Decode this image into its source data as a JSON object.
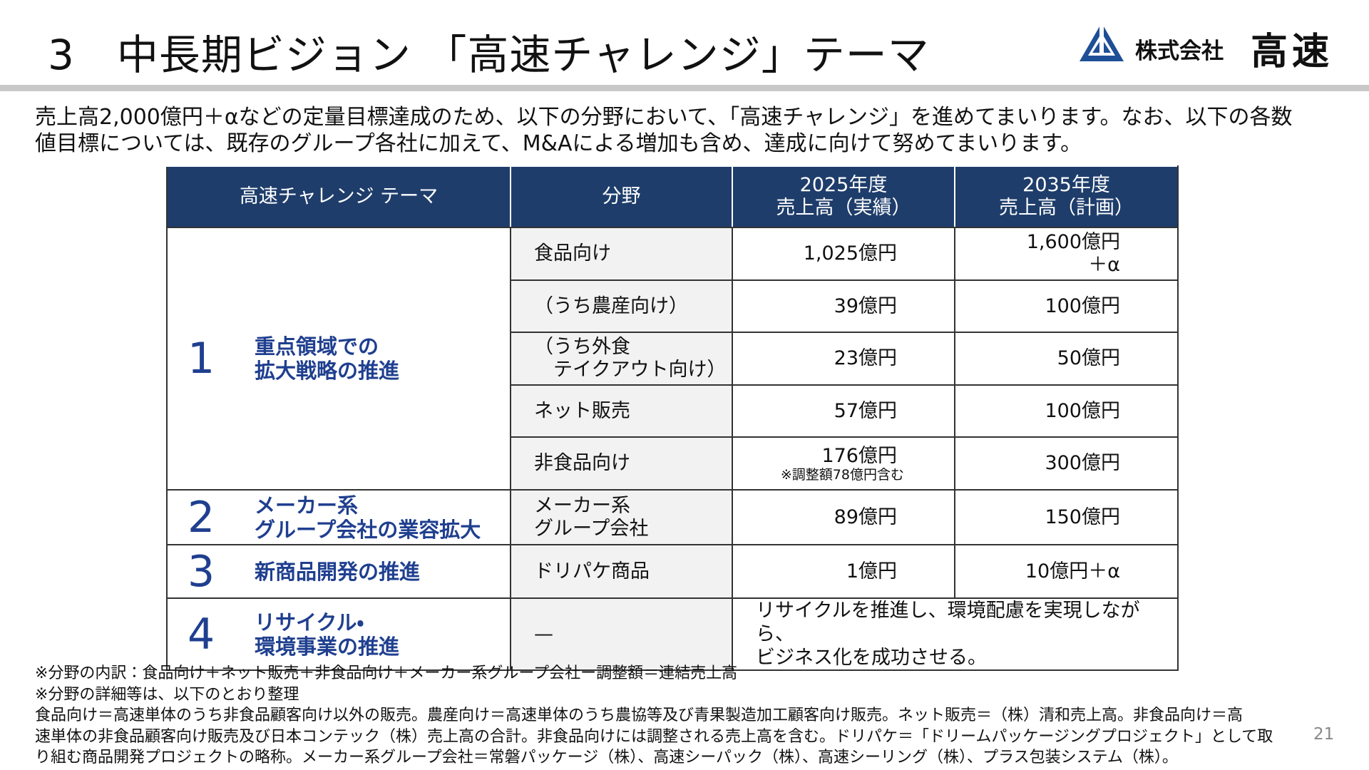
{
  "header": {
    "title": "3　中長期ビジョン 「高速チャレンジ」テーマ",
    "company_prefix": "株式会社",
    "company_name": "高速"
  },
  "intro": [
    "売上高2,000億円＋αなどの定量目標達成のため、以下の分野において、「高速チャレンジ」を進めてまいります。なお、以下の各数",
    "値目標については、既存のグループ各社に加えて、M&Aによる増加も含め、達成に向けて努めてまいります。"
  ],
  "table": {
    "columns": [
      "高速チャレンジ テーマ",
      "分野",
      "2025年度\n売上高（実績）",
      "2035年度\n売上高（計画）"
    ],
    "groups": [
      {
        "number": "1",
        "theme": "重点領域での\n拡大戦略の推進",
        "rows": [
          {
            "field": "食品向け",
            "actual": "1,025億円",
            "plan": "1,600億円\n＋α"
          },
          {
            "field": "（うち農産向け）",
            "actual": "39億円",
            "plan": "100億円"
          },
          {
            "field": "（うち外食\n　テイクアウト向け）",
            "actual": "23億円",
            "plan": "50億円"
          },
          {
            "field": "ネット販売",
            "actual": "57億円",
            "plan": "100億円"
          },
          {
            "field": "非食品向け",
            "actual": "176億円",
            "actual_note": "※調整額78億円含む",
            "plan": "300億円"
          }
        ]
      },
      {
        "number": "2",
        "theme": "メーカー系\nグループ会社の業容拡大",
        "rows": [
          {
            "field": "メーカー系\nグループ会社",
            "actual": "89億円",
            "plan": "150億円"
          }
        ]
      },
      {
        "number": "3",
        "theme": "新商品開発の推進",
        "rows": [
          {
            "field": "ドリパケ商品",
            "actual": "1億円",
            "plan": "10億円＋α"
          }
        ]
      },
      {
        "number": "4",
        "theme": "リサイクル・\n環境事業の推進",
        "rows": [
          {
            "field": "—",
            "remark": "リサイクルを推進し、環境配慮を実現しながら、\nビジネス化を成功させる。"
          }
        ]
      }
    ]
  },
  "notes": [
    "※分野の内訳：食品向け＋ネット販売＋非食品向け＋メーカー系グループ会社ー調整額＝連結売上高",
    "※分野の詳細等は、以下のとおり整理",
    "食品向け＝高速単体のうち非食品顧客向け以外の販売。農産向け＝高速単体のうち農協等及び青果製造加工顧客向け販売。ネット販売＝（株）清和売上高。非食品向け＝高",
    "速単体の非食品顧客向け販売及び日本コンテック（株）売上高の合計。非食品向けには調整される売上高を含む。ドリパケ＝「ドリームパッケージングプロジェクト」として取",
    "り組む商品開発プロジェクトの略称。メーカー系グループ会社＝常磐パッケージ（株）、高速シーパック（株）、高速シーリング（株）、プラス包装システム（株）。"
  ],
  "page_number": "21"
}
